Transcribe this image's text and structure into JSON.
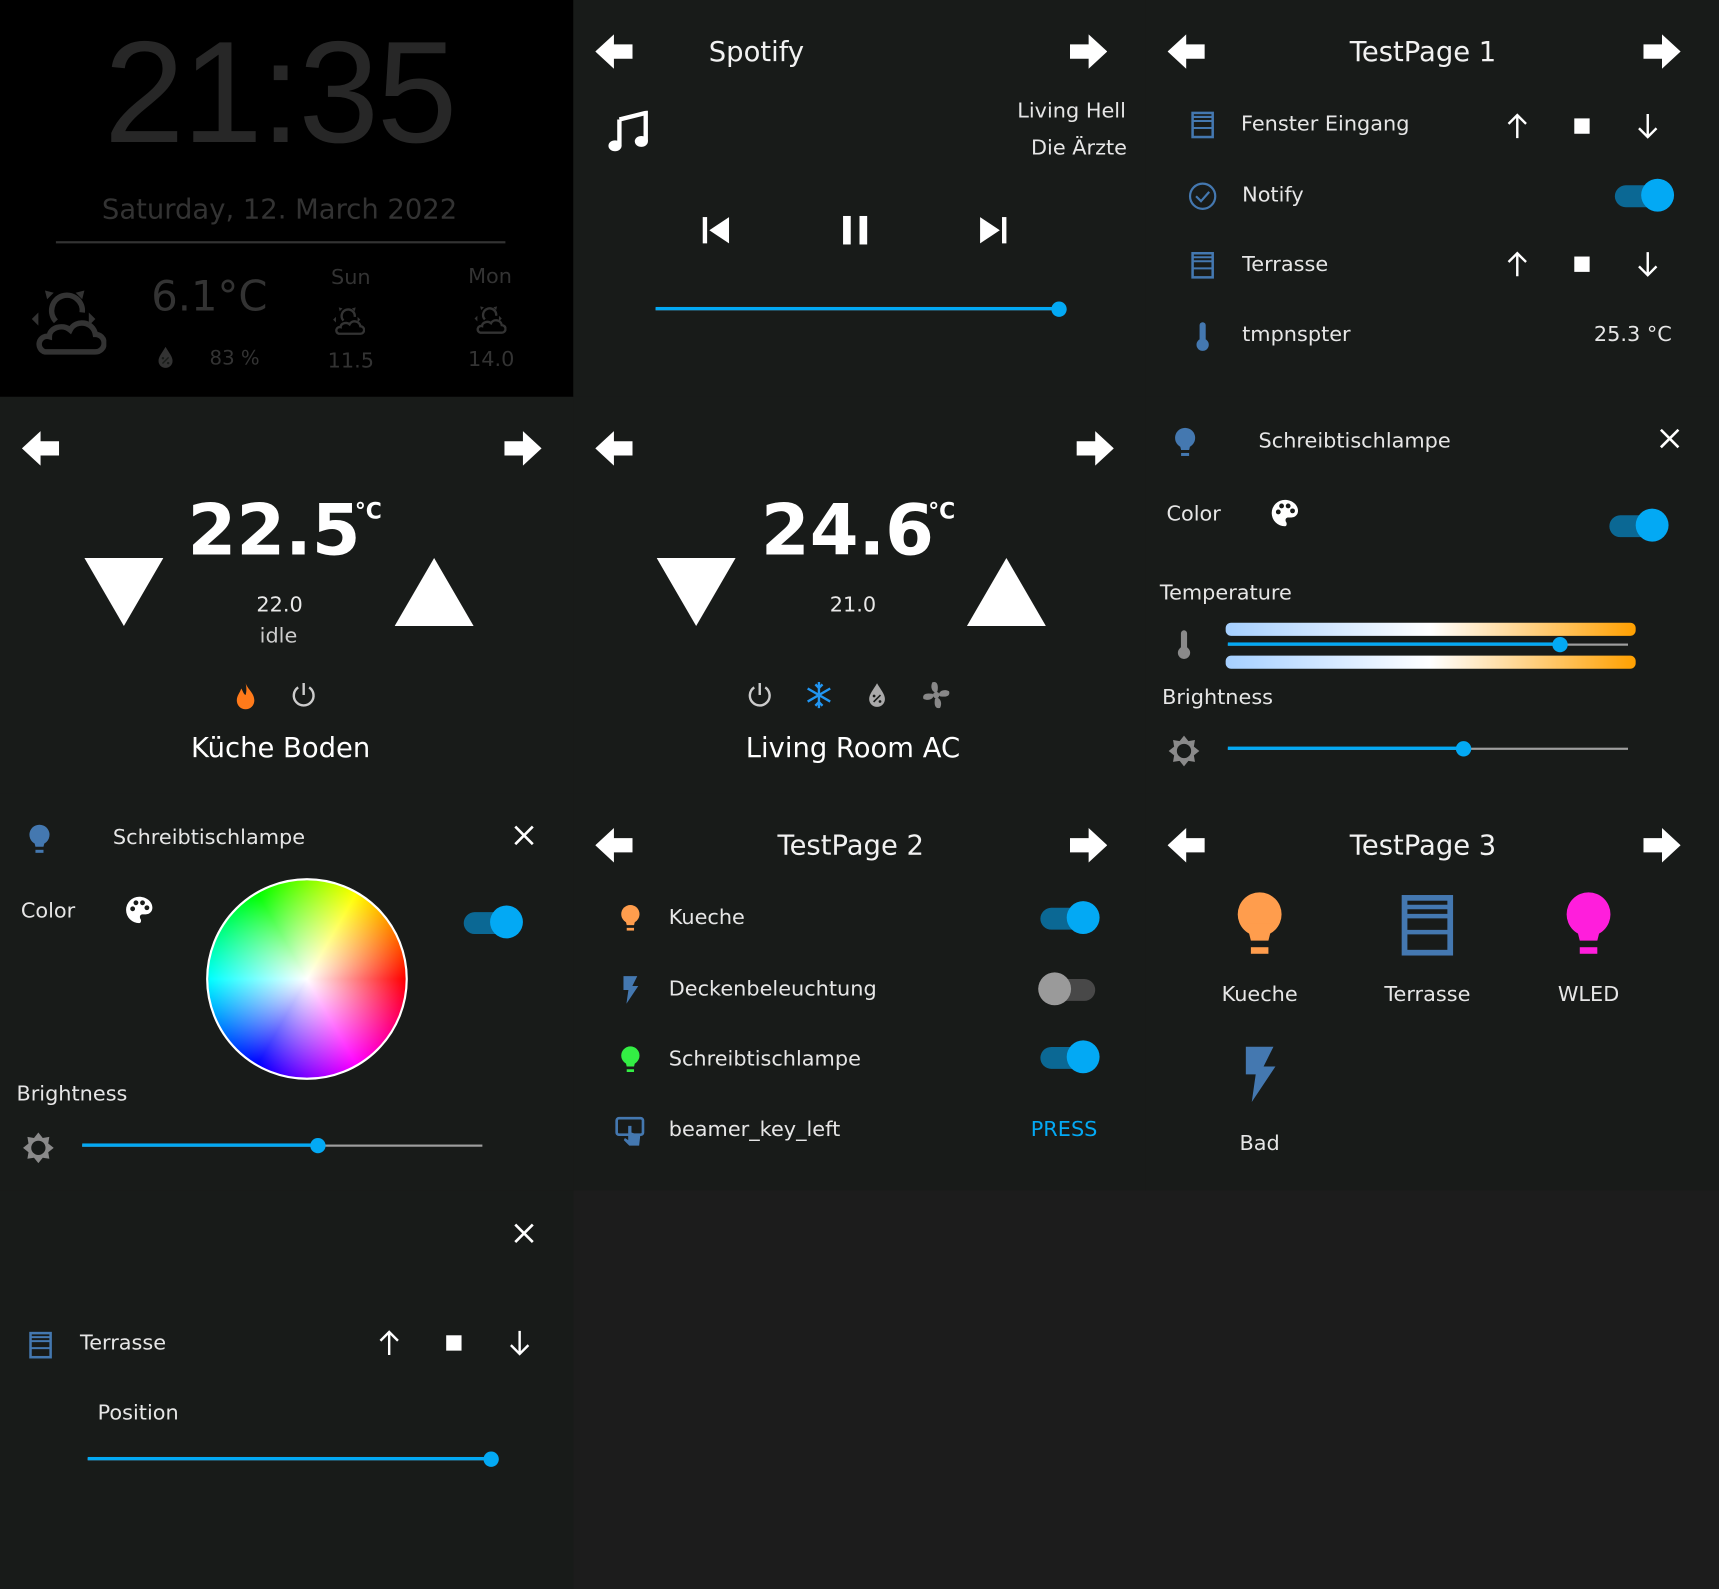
{
  "accent_color": "#03a9f4",
  "clock": {
    "time": "21:35",
    "date": "Saturday, 12. March 2022",
    "temperature": "6.1°C",
    "humidity": "83 %",
    "forecast": [
      {
        "day": "Sun",
        "value": "11.5"
      },
      {
        "day": "Mon",
        "value": "14.0"
      }
    ],
    "weather_icon": "partly-cloudy-icon"
  },
  "spotify": {
    "title": "Spotify",
    "track": "Living Hell",
    "artist": "Die Ärzte",
    "progress_percent": 100
  },
  "testpage1": {
    "title": "TestPage 1",
    "rows": [
      {
        "label": "Fenster Eingang",
        "icon": "window-shutter-icon",
        "type": "cover"
      },
      {
        "label": "Notify",
        "icon": "check-circle-icon",
        "type": "toggle",
        "on": true
      },
      {
        "label": "Terrasse",
        "icon": "window-shutter-icon",
        "type": "cover"
      },
      {
        "label": "tmpnspter",
        "icon": "thermometer-icon",
        "type": "value",
        "value": "25.3 °C"
      }
    ]
  },
  "thermo1": {
    "current": "22.5",
    "unit": "°C",
    "target": "22.0",
    "state": "idle",
    "name": "Küche Boden",
    "modes": [
      "heat",
      "off"
    ],
    "active_mode": "heat",
    "heat_color": "#ff7a1a"
  },
  "thermo2": {
    "current": "24.6",
    "unit": "°C",
    "target": "21.0",
    "name": "Living Room AC",
    "modes": [
      "off",
      "cool",
      "dry",
      "fan"
    ],
    "active_mode": "cool",
    "cool_color": "#2196f3"
  },
  "light_temp": {
    "name": "Schreibtischlampe",
    "color_label": "Color",
    "on": true,
    "temperature_label": "Temperature",
    "temperature_percent": 83,
    "brightness_label": "Brightness",
    "brightness_percent": 59
  },
  "light_color": {
    "name": "Schreibtischlampe",
    "color_label": "Color",
    "on": true,
    "brightness_label": "Brightness",
    "brightness_percent": 59
  },
  "testpage2": {
    "title": "TestPage 2",
    "rows": [
      {
        "label": "Kueche",
        "icon": "lightbulb-icon",
        "icon_color": "#ff9d4d",
        "on": true
      },
      {
        "label": "Deckenbeleuchtung",
        "icon": "flash-icon",
        "icon_color": "#4478b0",
        "on": false
      },
      {
        "label": "Schreibtischlampe",
        "icon": "lightbulb-icon",
        "icon_color": "#33ee44",
        "on": true
      },
      {
        "label": "beamer_key_left",
        "icon": "gesture-tap-button-icon",
        "icon_color": "#4478b0",
        "action": "PRESS"
      }
    ]
  },
  "testpage3": {
    "title": "TestPage 3",
    "tiles": [
      {
        "label": "Kueche",
        "icon": "lightbulb-icon",
        "color": "#ff9d4d"
      },
      {
        "label": "Terrasse",
        "icon": "window-shutter-icon",
        "color": "#4478b0"
      },
      {
        "label": "WLED",
        "icon": "lightbulb-icon",
        "color": "#ff1edc"
      },
      {
        "label": "Bad",
        "icon": "flash-icon",
        "color": "#4478b0"
      }
    ]
  },
  "cover_popup": {
    "name": "Terrasse",
    "position_label": "Position",
    "position_percent": 100
  }
}
